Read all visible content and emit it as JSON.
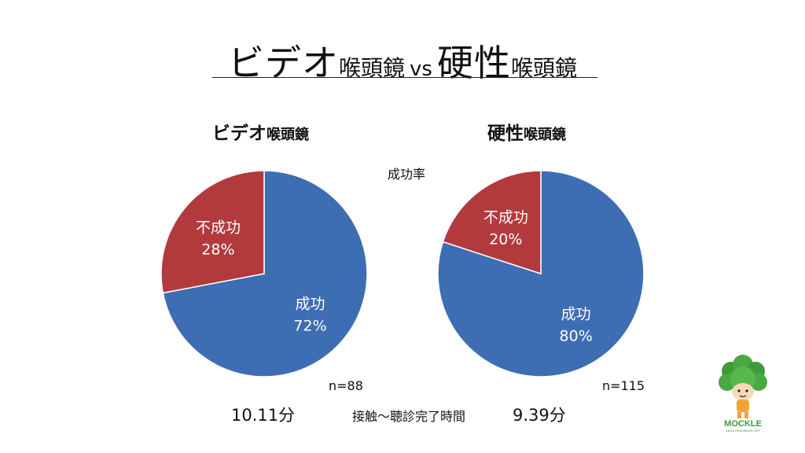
{
  "slide": {
    "title_part1": "ビデオ",
    "title_part2": "喉頭鏡",
    "title_vs": "vs",
    "title_part3": "硬性",
    "title_part4": "喉頭鏡"
  },
  "caption": "成功率",
  "time_caption": "接触〜聴診完了時間",
  "logo": {
    "text": "MOCKLE",
    "sub_text": "KAGUYAHIMEAGE OFF"
  },
  "colors": {
    "success": "#3d6db3",
    "failure": "#b23a3d"
  },
  "chart_data": [
    {
      "type": "pie",
      "title_main": "ビデオ",
      "title_sub": "喉頭鏡",
      "n_label": "n=88",
      "time_label": "10.11分",
      "slices": [
        {
          "label": "成功",
          "value": 72,
          "value_label": "72%",
          "color": "#3d6db3"
        },
        {
          "label": "不成功",
          "value": 28,
          "value_label": "28%",
          "color": "#b23a3d"
        }
      ]
    },
    {
      "type": "pie",
      "title_main": "硬性",
      "title_sub": "喉頭鏡",
      "n_label": "n=115",
      "time_label": "9.39分",
      "slices": [
        {
          "label": "成功",
          "value": 80,
          "value_label": "80%",
          "color": "#3d6db3"
        },
        {
          "label": "不成功",
          "value": 20,
          "value_label": "20%",
          "color": "#b23a3d"
        }
      ]
    }
  ]
}
